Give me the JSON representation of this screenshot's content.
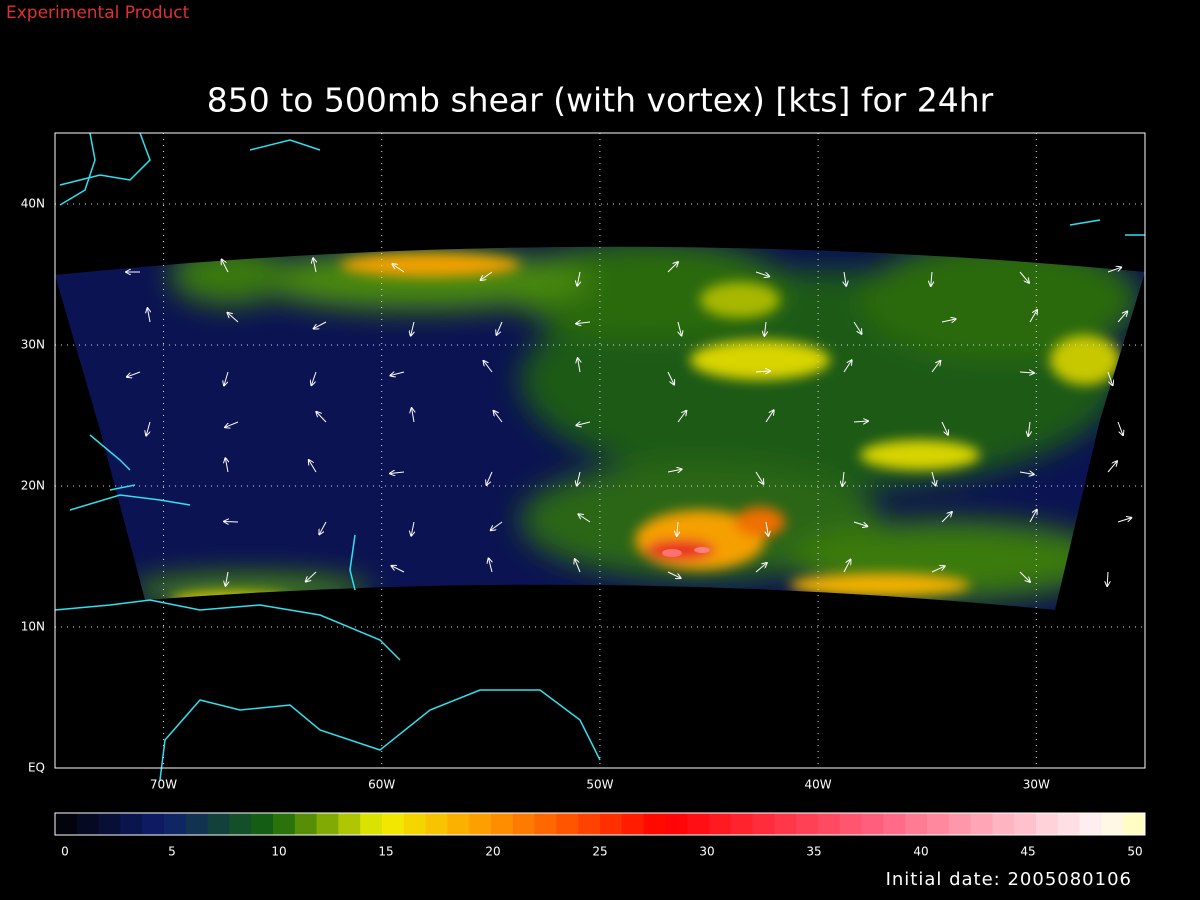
{
  "header": {
    "product": "Experimental Product",
    "title": "850 to 500mb shear (with vortex) [kts] for 24hr"
  },
  "map": {
    "lat_labels": [
      "40N",
      "30N",
      "20N",
      "10N",
      "EQ"
    ],
    "lon_labels": [
      "70W",
      "60W",
      "50W",
      "40W",
      "30W"
    ]
  },
  "colorbar": {
    "labels": [
      "0",
      "5",
      "10",
      "15",
      "20",
      "25",
      "30",
      "35",
      "40",
      "45",
      "50"
    ]
  },
  "footer": {
    "initial_date": "Initial date: 2005080106"
  }
}
